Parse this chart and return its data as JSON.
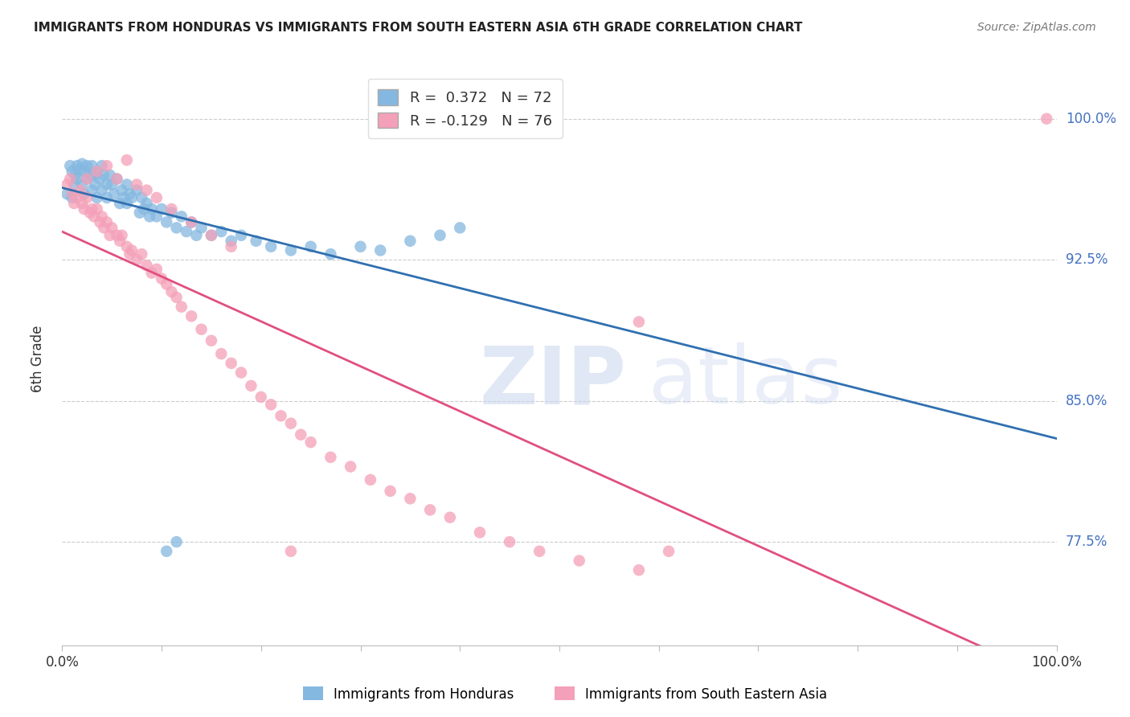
{
  "title": "IMMIGRANTS FROM HONDURAS VS IMMIGRANTS FROM SOUTH EASTERN ASIA 6TH GRADE CORRELATION CHART",
  "source": "Source: ZipAtlas.com",
  "ylabel": "6th Grade",
  "ytick_labels": [
    "77.5%",
    "85.0%",
    "92.5%",
    "100.0%"
  ],
  "ytick_values": [
    0.775,
    0.85,
    0.925,
    1.0
  ],
  "xlim": [
    0.0,
    1.0
  ],
  "ylim": [
    0.72,
    1.025
  ],
  "blue_R": 0.372,
  "blue_N": 72,
  "pink_R": -0.129,
  "pink_N": 76,
  "blue_color": "#85b8e0",
  "pink_color": "#f4a0b8",
  "blue_line_color": "#3070b0",
  "pink_line_color": "#e05080",
  "background_color": "#ffffff",
  "blue_scatter_x": [
    0.005,
    0.008,
    0.01,
    0.01,
    0.012,
    0.013,
    0.015,
    0.015,
    0.018,
    0.02,
    0.02,
    0.022,
    0.022,
    0.025,
    0.025,
    0.028,
    0.03,
    0.03,
    0.032,
    0.033,
    0.035,
    0.035,
    0.038,
    0.04,
    0.04,
    0.042,
    0.045,
    0.045,
    0.048,
    0.05,
    0.052,
    0.055,
    0.058,
    0.06,
    0.062,
    0.065,
    0.065,
    0.068,
    0.07,
    0.075,
    0.078,
    0.08,
    0.082,
    0.085,
    0.088,
    0.09,
    0.095,
    0.1,
    0.105,
    0.11,
    0.115,
    0.12,
    0.125,
    0.13,
    0.135,
    0.14,
    0.15,
    0.16,
    0.17,
    0.18,
    0.195,
    0.21,
    0.23,
    0.25,
    0.27,
    0.3,
    0.32,
    0.35,
    0.38,
    0.4,
    0.105,
    0.115
  ],
  "blue_scatter_y": [
    0.96,
    0.975,
    0.958,
    0.972,
    0.965,
    0.97,
    0.975,
    0.968,
    0.973,
    0.976,
    0.965,
    0.972,
    0.96,
    0.975,
    0.968,
    0.97,
    0.975,
    0.962,
    0.97,
    0.965,
    0.972,
    0.958,
    0.968,
    0.975,
    0.962,
    0.97,
    0.965,
    0.958,
    0.97,
    0.965,
    0.96,
    0.968,
    0.955,
    0.962,
    0.958,
    0.965,
    0.955,
    0.96,
    0.958,
    0.962,
    0.95,
    0.958,
    0.952,
    0.955,
    0.948,
    0.952,
    0.948,
    0.952,
    0.945,
    0.95,
    0.942,
    0.948,
    0.94,
    0.945,
    0.938,
    0.942,
    0.938,
    0.94,
    0.935,
    0.938,
    0.935,
    0.932,
    0.93,
    0.932,
    0.928,
    0.932,
    0.93,
    0.935,
    0.938,
    0.942,
    0.77,
    0.775
  ],
  "pink_scatter_x": [
    0.005,
    0.008,
    0.01,
    0.012,
    0.015,
    0.018,
    0.02,
    0.022,
    0.025,
    0.028,
    0.03,
    0.032,
    0.035,
    0.038,
    0.04,
    0.042,
    0.045,
    0.048,
    0.05,
    0.055,
    0.058,
    0.06,
    0.065,
    0.068,
    0.07,
    0.075,
    0.08,
    0.085,
    0.09,
    0.095,
    0.1,
    0.105,
    0.11,
    0.115,
    0.12,
    0.13,
    0.14,
    0.15,
    0.16,
    0.17,
    0.18,
    0.19,
    0.2,
    0.21,
    0.22,
    0.23,
    0.24,
    0.25,
    0.27,
    0.29,
    0.31,
    0.33,
    0.35,
    0.37,
    0.39,
    0.42,
    0.45,
    0.48,
    0.52,
    0.58,
    0.025,
    0.035,
    0.045,
    0.055,
    0.065,
    0.075,
    0.085,
    0.095,
    0.11,
    0.13,
    0.15,
    0.17,
    0.58,
    0.99,
    0.61,
    0.23
  ],
  "pink_scatter_y": [
    0.965,
    0.968,
    0.96,
    0.955,
    0.958,
    0.962,
    0.955,
    0.952,
    0.958,
    0.95,
    0.952,
    0.948,
    0.952,
    0.945,
    0.948,
    0.942,
    0.945,
    0.938,
    0.942,
    0.938,
    0.935,
    0.938,
    0.932,
    0.928,
    0.93,
    0.925,
    0.928,
    0.922,
    0.918,
    0.92,
    0.915,
    0.912,
    0.908,
    0.905,
    0.9,
    0.895,
    0.888,
    0.882,
    0.875,
    0.87,
    0.865,
    0.858,
    0.852,
    0.848,
    0.842,
    0.838,
    0.832,
    0.828,
    0.82,
    0.815,
    0.808,
    0.802,
    0.798,
    0.792,
    0.788,
    0.78,
    0.775,
    0.77,
    0.765,
    0.76,
    0.968,
    0.972,
    0.975,
    0.968,
    0.978,
    0.965,
    0.962,
    0.958,
    0.952,
    0.945,
    0.938,
    0.932,
    0.892,
    1.0,
    0.77,
    0.77
  ]
}
